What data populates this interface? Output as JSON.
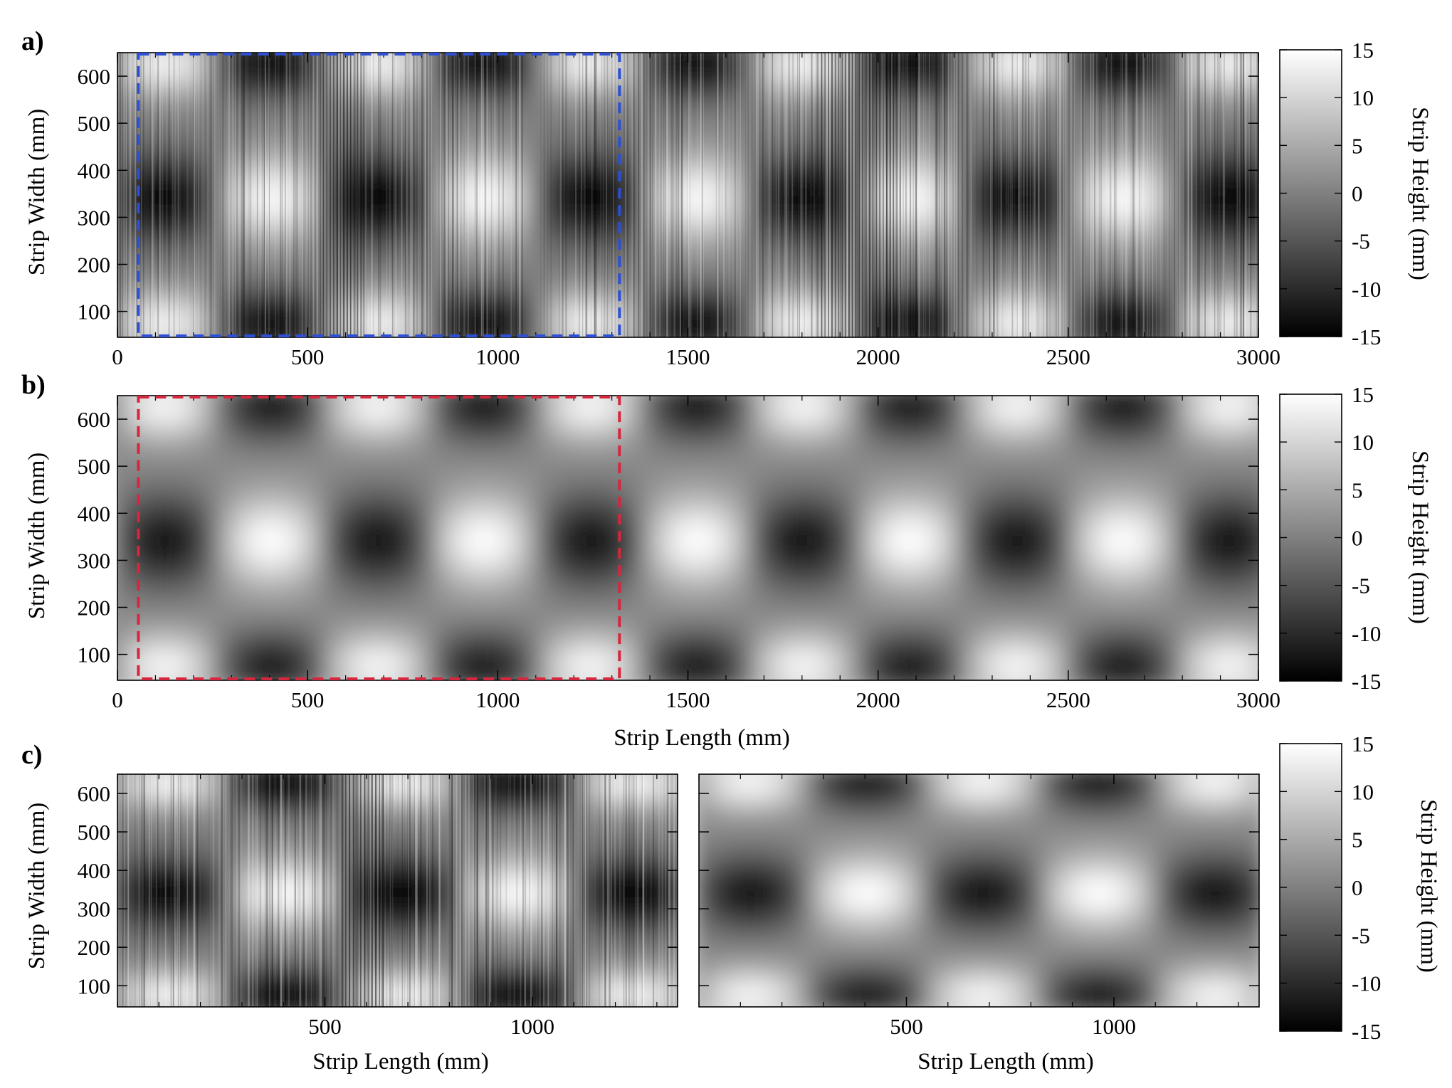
{
  "colors": {
    "low": "#000000",
    "high": "#ffffff",
    "box_a": "#2c4fd6",
    "box_b": "#d7263d",
    "frame": "#000000"
  },
  "panels": {
    "a": {
      "label": "a)"
    },
    "b": {
      "label": "b)"
    },
    "c": {
      "label": "c)"
    }
  },
  "axis_titles": {
    "width": "Strip Width (mm)",
    "length": "Strip Length (mm)",
    "height": "Strip Height (mm)"
  },
  "chart_data": [
    {
      "id": "a",
      "type": "heatmap",
      "variant": "raw-noisy",
      "xlabel": "",
      "ylabel": "Strip Width (mm)",
      "xlim": [
        0,
        3000
      ],
      "ylim": [
        45,
        650
      ],
      "xticks": [
        0,
        500,
        1000,
        1500,
        2000,
        2500,
        3000
      ],
      "yticks": [
        100,
        200,
        300,
        400,
        500,
        600
      ],
      "colorbar": {
        "label": "Strip Height (mm)",
        "range": [
          -15,
          15
        ],
        "ticks": [
          15,
          10,
          5,
          0,
          -5,
          -10,
          -15
        ]
      },
      "highlight_box": {
        "x": [
          55,
          1320
        ],
        "y": [
          45,
          650
        ],
        "color": "blue",
        "style": "dashed"
      }
    },
    {
      "id": "b",
      "type": "heatmap",
      "variant": "smoothed",
      "xlabel": "Strip Length (mm)",
      "ylabel": "Strip Width (mm)",
      "xlim": [
        0,
        3000
      ],
      "ylim": [
        45,
        650
      ],
      "xticks": [
        0,
        500,
        1000,
        1500,
        2000,
        2500,
        3000
      ],
      "yticks": [
        100,
        200,
        300,
        400,
        500,
        600
      ],
      "colorbar": {
        "label": "Strip Height (mm)",
        "range": [
          -15,
          15
        ],
        "ticks": [
          15,
          10,
          5,
          0,
          -5,
          -10,
          -15
        ]
      },
      "highlight_box": {
        "x": [
          55,
          1320
        ],
        "y": [
          45,
          650
        ],
        "color": "red",
        "style": "dashed"
      }
    },
    {
      "id": "c-left",
      "type": "heatmap",
      "variant": "raw-noisy",
      "xlabel": "Strip Length (mm)",
      "ylabel": "Strip Width (mm)",
      "xlim": [
        0,
        1350
      ],
      "ylim": [
        45,
        650
      ],
      "xticks": [
        500,
        1000
      ],
      "yticks": [
        100,
        200,
        300,
        400,
        500,
        600
      ]
    },
    {
      "id": "c-right",
      "type": "heatmap",
      "variant": "smoothed",
      "xlabel": "Strip Length (mm)",
      "ylabel": "",
      "xlim": [
        0,
        1350
      ],
      "ylim": [
        45,
        650
      ],
      "xticks": [
        500,
        1000
      ],
      "yticks": [],
      "colorbar": {
        "label": "Strip Height (mm)",
        "range": [
          -15,
          15
        ],
        "ticks": [
          15,
          10,
          5,
          0,
          -5,
          -10,
          -15
        ]
      }
    }
  ]
}
